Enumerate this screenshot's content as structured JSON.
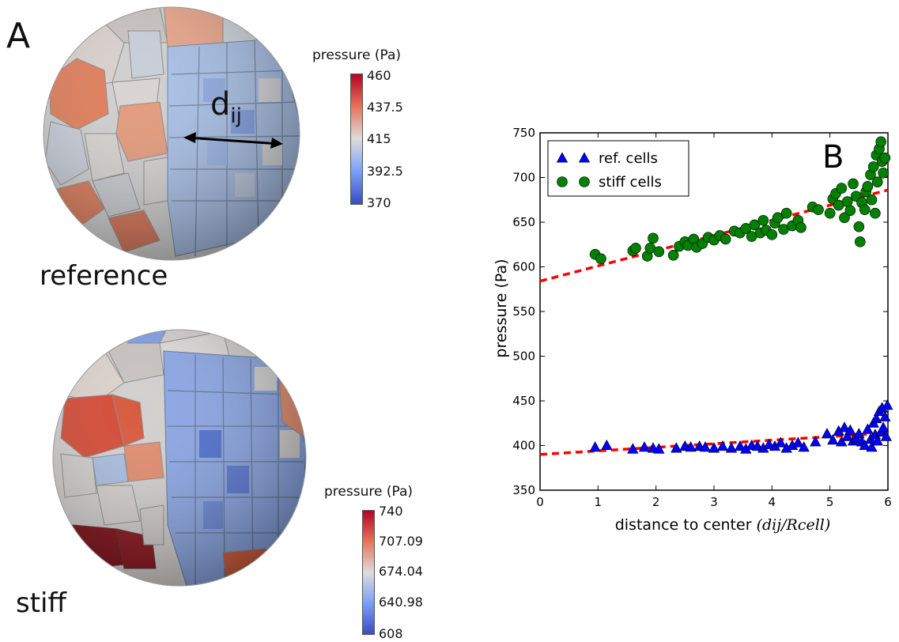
{
  "panel_a": {
    "letter": "A",
    "reference": {
      "label": "reference",
      "distance_label": "d",
      "distance_subscript": "ij",
      "colorbar": {
        "title": "pressure (Pa)",
        "ticks": [
          "460",
          "437.5",
          "415",
          "392.5",
          "370"
        ],
        "colors": [
          "#b40426",
          "#e7745b",
          "#dddcdc",
          "#7b9ff9",
          "#3b4cc0"
        ]
      }
    },
    "stiff": {
      "label": "stiff",
      "colorbar": {
        "title": "pressure (Pa)",
        "ticks": [
          "740",
          "707.09",
          "674.04",
          "640.98",
          "608"
        ],
        "colors": [
          "#b40426",
          "#e7745b",
          "#dddcdc",
          "#7b9ff9",
          "#3b4cc0"
        ]
      }
    }
  },
  "chart_data": {
    "type": "scatter",
    "panel_letter": "B",
    "xlabel": "distance to center (d_ij/R_cell)",
    "xlabel_text": "distance to center ",
    "xlabel_math": "(dij/Rcell)",
    "ylabel": "pressure (Pa)",
    "xlim": [
      0,
      6
    ],
    "ylim": [
      350,
      750
    ],
    "xticks": [
      0,
      1,
      2,
      3,
      4,
      5,
      6
    ],
    "yticks": [
      350,
      400,
      450,
      500,
      550,
      600,
      650,
      700,
      750
    ],
    "grid": false,
    "legend_position": "top-left",
    "series": [
      {
        "name": "ref. cells",
        "marker": "triangle",
        "color": "#0000ff",
        "points": [
          [
            0.95,
            398
          ],
          [
            1.15,
            400
          ],
          [
            1.6,
            396
          ],
          [
            1.8,
            398
          ],
          [
            1.95,
            397
          ],
          [
            2.05,
            396
          ],
          [
            2.35,
            397
          ],
          [
            2.5,
            399
          ],
          [
            2.6,
            398
          ],
          [
            2.75,
            399
          ],
          [
            2.85,
            398
          ],
          [
            3.0,
            397
          ],
          [
            3.15,
            399
          ],
          [
            3.3,
            397
          ],
          [
            3.45,
            399
          ],
          [
            3.55,
            396
          ],
          [
            3.65,
            400
          ],
          [
            3.75,
            399
          ],
          [
            3.85,
            397
          ],
          [
            3.95,
            401
          ],
          [
            4.05,
            399
          ],
          [
            4.15,
            403
          ],
          [
            4.25,
            397
          ],
          [
            4.35,
            400
          ],
          [
            4.45,
            403
          ],
          [
            4.55,
            398
          ],
          [
            4.75,
            404
          ],
          [
            4.95,
            413
          ],
          [
            5.05,
            406
          ],
          [
            5.15,
            416
          ],
          [
            5.2,
            404
          ],
          [
            5.25,
            420
          ],
          [
            5.3,
            410
          ],
          [
            5.35,
            417
          ],
          [
            5.4,
            405
          ],
          [
            5.45,
            408
          ],
          [
            5.5,
            413
          ],
          [
            5.55,
            404
          ],
          [
            5.6,
            400
          ],
          [
            5.65,
            418
          ],
          [
            5.7,
            407
          ],
          [
            5.72,
            398
          ],
          [
            5.75,
            425
          ],
          [
            5.78,
            412
          ],
          [
            5.8,
            430
          ],
          [
            5.82,
            405
          ],
          [
            5.85,
            438
          ],
          [
            5.88,
            415
          ],
          [
            5.9,
            442
          ],
          [
            5.92,
            420
          ],
          [
            5.95,
            432
          ],
          [
            5.97,
            410
          ],
          [
            5.99,
            445
          ]
        ]
      },
      {
        "name": "stiff cells",
        "marker": "circle",
        "color": "#008000",
        "points": [
          [
            0.95,
            614
          ],
          [
            1.05,
            609
          ],
          [
            1.6,
            618
          ],
          [
            1.65,
            621
          ],
          [
            1.85,
            612
          ],
          [
            1.9,
            621
          ],
          [
            1.95,
            632
          ],
          [
            2.05,
            617
          ],
          [
            2.3,
            613
          ],
          [
            2.4,
            623
          ],
          [
            2.5,
            628
          ],
          [
            2.55,
            624
          ],
          [
            2.65,
            631
          ],
          [
            2.7,
            622
          ],
          [
            2.8,
            626
          ],
          [
            2.9,
            633
          ],
          [
            3.0,
            630
          ],
          [
            3.1,
            635
          ],
          [
            3.2,
            631
          ],
          [
            3.35,
            640
          ],
          [
            3.45,
            638
          ],
          [
            3.55,
            643
          ],
          [
            3.65,
            634
          ],
          [
            3.7,
            647
          ],
          [
            3.8,
            638
          ],
          [
            3.85,
            652
          ],
          [
            3.9,
            641
          ],
          [
            4.0,
            636
          ],
          [
            4.05,
            649
          ],
          [
            4.1,
            655
          ],
          [
            4.2,
            642
          ],
          [
            4.25,
            660
          ],
          [
            4.35,
            646
          ],
          [
            4.45,
            652
          ],
          [
            4.5,
            644
          ],
          [
            4.7,
            667
          ],
          [
            4.8,
            664
          ],
          [
            5.0,
            660
          ],
          [
            5.05,
            676
          ],
          [
            5.1,
            682
          ],
          [
            5.15,
            669
          ],
          [
            5.2,
            688
          ],
          [
            5.25,
            655
          ],
          [
            5.3,
            673
          ],
          [
            5.35,
            663
          ],
          [
            5.4,
            693
          ],
          [
            5.45,
            679
          ],
          [
            5.5,
            645
          ],
          [
            5.52,
            628
          ],
          [
            5.55,
            672
          ],
          [
            5.6,
            664
          ],
          [
            5.62,
            684
          ],
          [
            5.65,
            690
          ],
          [
            5.7,
            703
          ],
          [
            5.72,
            675
          ],
          [
            5.75,
            712
          ],
          [
            5.78,
            660
          ],
          [
            5.8,
            725
          ],
          [
            5.82,
            695
          ],
          [
            5.85,
            732
          ],
          [
            5.88,
            740
          ],
          [
            5.9,
            718
          ],
          [
            5.92,
            705
          ],
          [
            5.95,
            722
          ]
        ]
      }
    ],
    "fits": [
      {
        "color": "#ff0000",
        "x0": 0,
        "y0": 584,
        "x1": 6,
        "y1": 686
      },
      {
        "color": "#ff0000",
        "x0": 0,
        "y0": 390,
        "x1": 6,
        "y1": 414
      }
    ]
  }
}
